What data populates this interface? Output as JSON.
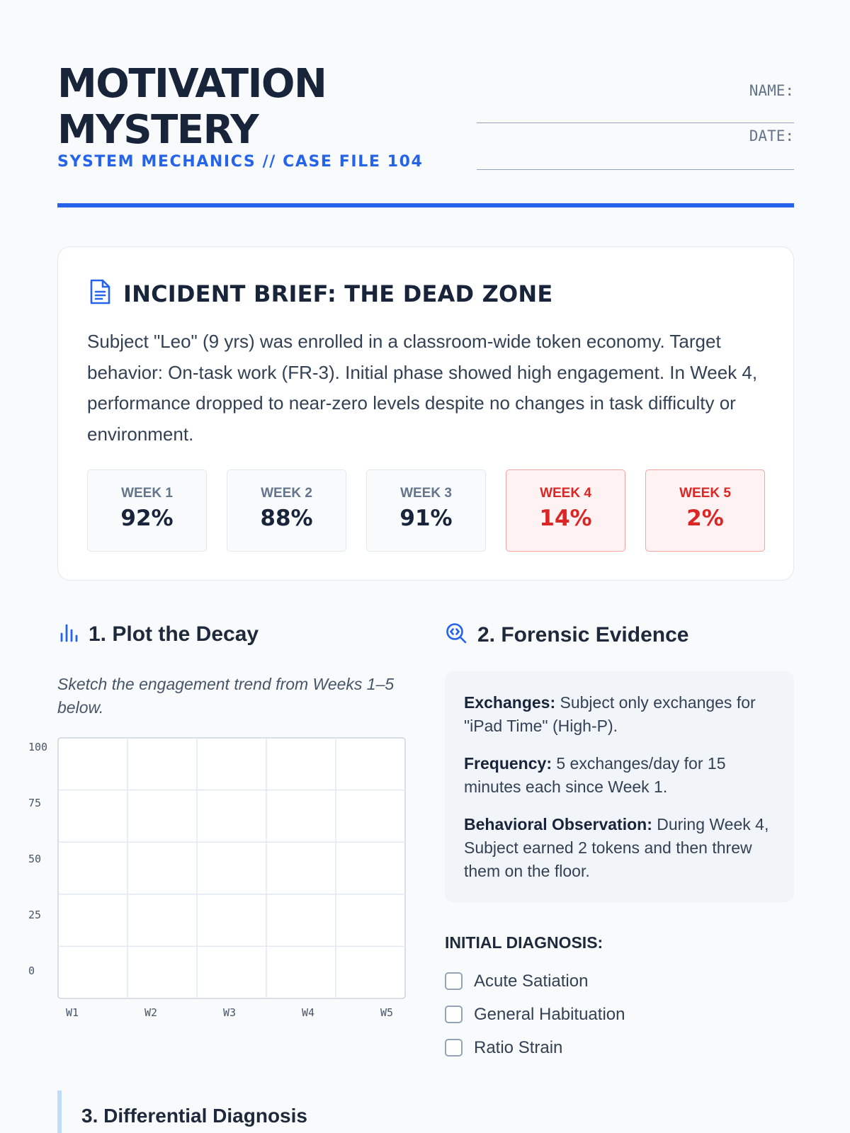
{
  "header": {
    "title_line1": "MOTIVATION",
    "title_line2": "MYSTERY",
    "subtitle": "SYSTEM MECHANICS // CASE FILE 104",
    "name_label": "NAME:",
    "date_label": "DATE:"
  },
  "brief": {
    "icon": "document-icon",
    "title": "INCIDENT BRIEF: THE DEAD ZONE",
    "body": "Subject \"Leo\" (9 yrs) was enrolled in a classroom-wide token economy. Target behavior: On-task work (FR-3). Initial phase showed high engagement. In Week 4, performance dropped to near-zero levels despite no changes in task difficulty or environment.",
    "weeks": [
      {
        "label": "WEEK 1",
        "value": "92%",
        "alert": false
      },
      {
        "label": "WEEK 2",
        "value": "88%",
        "alert": false
      },
      {
        "label": "WEEK 3",
        "value": "91%",
        "alert": false
      },
      {
        "label": "WEEK 4",
        "value": "14%",
        "alert": true
      },
      {
        "label": "WEEK 5",
        "value": "2%",
        "alert": true
      }
    ],
    "alert_color": "#dc2626"
  },
  "plot": {
    "icon": "bar-chart-icon",
    "title": "1. Plot the Decay",
    "instruction": "Sketch the engagement trend from Weeks 1–5 below."
  },
  "chart_data": {
    "type": "line",
    "x": [
      "W1",
      "W2",
      "W3",
      "W4",
      "W5"
    ],
    "series": [],
    "ylim": [
      0,
      100
    ],
    "yticks": [
      "100",
      "75",
      "50",
      "25",
      "0"
    ],
    "grid": true,
    "title": "",
    "xlabel": "",
    "ylabel": ""
  },
  "evidence": {
    "icon": "magnifier-icon",
    "title": "2. Forensic Evidence",
    "items": [
      {
        "label": "Exchanges:",
        "text": " Subject only exchanges for \"iPad Time\" (High-P)."
      },
      {
        "label": "Frequency:",
        "text": " 5 exchanges/day for 15 minutes each since Week 1."
      },
      {
        "label": "Behavioral Observation:",
        "text": " During Week 4, Subject earned 2 tokens and then threw them on the floor."
      }
    ]
  },
  "diagnosis": {
    "label": "INITIAL DIAGNOSIS:",
    "options": [
      "Acute Satiation",
      "General Habituation",
      "Ratio Strain"
    ]
  },
  "differential": {
    "title": "3. Differential Diagnosis"
  },
  "colors": {
    "accent": "#2563eb",
    "ink": "#18243a"
  }
}
